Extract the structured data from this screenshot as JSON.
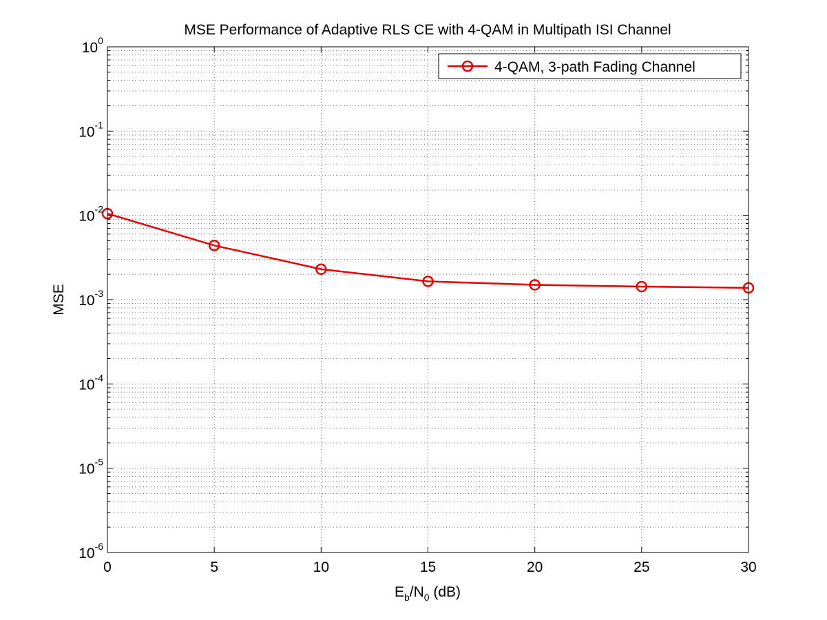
{
  "chart_data": {
    "type": "line",
    "title": "MSE Performance of Adaptive RLS CE with 4-QAM in Multipath ISI Channel",
    "xlabel": {
      "base": "E",
      "sub1": "b",
      "mid": "/N",
      "sub2": "0",
      "rest": " (dB)"
    },
    "ylabel": "MSE",
    "xlim": [
      0,
      30
    ],
    "ylim": [
      1e-06,
      1
    ],
    "yscale": "log",
    "grid": true,
    "legend_position": "top-right",
    "x_ticks": [
      "0",
      "5",
      "10",
      "15",
      "20",
      "25",
      "30"
    ],
    "y_ticks": [
      {
        "base": "10",
        "exp": "0"
      },
      {
        "base": "10",
        "exp": "-1"
      },
      {
        "base": "10",
        "exp": "-2"
      },
      {
        "base": "10",
        "exp": "-3"
      },
      {
        "base": "10",
        "exp": "-4"
      },
      {
        "base": "10",
        "exp": "-5"
      },
      {
        "base": "10",
        "exp": "-6"
      }
    ],
    "series": [
      {
        "name": "4-QAM, 3-path Fading Channel",
        "color": "#e00000",
        "marker": "circle",
        "x": [
          0,
          5,
          10,
          15,
          20,
          25,
          30
        ],
        "y": [
          0.0105,
          0.0044,
          0.0023,
          0.00165,
          0.0015,
          0.00143,
          0.00138
        ]
      }
    ]
  }
}
